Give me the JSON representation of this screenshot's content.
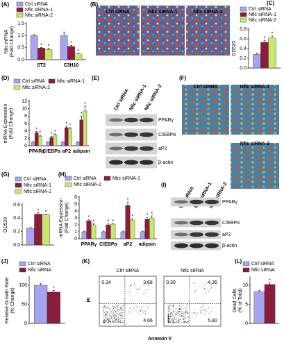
{
  "chart_data": [
    {
      "type": "bar",
      "panel": "(A)",
      "y_label": [
        "Nfic mRNA",
        "(Fold Change)"
      ],
      "categories": [
        "ST2",
        "C3H10"
      ],
      "ylim": [
        0,
        1.5
      ],
      "yticks": [
        {
          "value": 0,
          "label": "0.0"
        },
        {
          "value": 0.5,
          "label": "0.5"
        },
        {
          "value": 1,
          "label": "1.0"
        },
        {
          "value": 1.5,
          "label": "1.5"
        }
      ],
      "series": [
        {
          "name": "Ctrl siRNA",
          "color": "#a5a5f0",
          "values": [
            1,
            1
          ],
          "errors": [
            0.04,
            0.15
          ]
        },
        {
          "name": "Nfic siRNA-1",
          "color": "#8c1c3c",
          "values": [
            0.48,
            0.55
          ],
          "errors": [
            0.03,
            0.05
          ],
          "sig": [
            "*",
            "*"
          ]
        },
        {
          "name": "Nfic siRNA-2",
          "color": "#c6e86c",
          "values": [
            0.42,
            0.24
          ],
          "errors": [
            0.05,
            0.03
          ],
          "sig": [
            "*",
            "*"
          ]
        }
      ]
    },
    {
      "type": "bar",
      "panel": "(C)",
      "y_label": [
        "OD520"
      ],
      "categories": [
        null
      ],
      "ylim": [
        0,
        0.8
      ],
      "yticks": [
        {
          "value": 0,
          "label": "0.0"
        },
        {
          "value": 0.2,
          "label": "0.2"
        },
        {
          "value": 0.4,
          "label": "0.4"
        },
        {
          "value": 0.6,
          "label": "0.6"
        },
        {
          "value": 0.8,
          "label": "0.8"
        }
      ],
      "series": [
        {
          "name": "Ctrl siRNA",
          "color": "#a5a5f0",
          "values": [
            0.28
          ],
          "errors": [
            0.03
          ]
        },
        {
          "name": "Nfic siRNA-1",
          "color": "#8c1c3c",
          "values": [
            0.53
          ],
          "errors": [
            0.04
          ],
          "sig": [
            "*"
          ]
        },
        {
          "name": "Nfic siRNA-2",
          "color": "#c6e86c",
          "values": [
            0.62
          ],
          "errors": [
            0.04
          ],
          "sig": [
            "*"
          ]
        }
      ]
    },
    {
      "type": "bar",
      "panel": "(D)",
      "y_label": [
        "mRNA Expression",
        "(Fold Change)"
      ],
      "categories": [
        "PPARγ",
        "C/EBPα",
        "aP2",
        "adipsin"
      ],
      "ylim": [
        0,
        12
      ],
      "yticks": [
        0,
        2,
        4,
        6,
        8,
        10,
        12
      ],
      "series": [
        {
          "name": "Ctrl siRNA",
          "color": "#a5a5f0",
          "values": [
            1,
            1,
            1,
            1
          ],
          "errors": [
            0.1,
            0.1,
            0.1,
            0.1
          ]
        },
        {
          "name": "Nfic siRNA-1",
          "color": "#8c1c3c",
          "values": [
            3.5,
            2.2,
            4.9,
            7
          ],
          "errors": [
            0.3,
            0.3,
            0.4,
            1
          ],
          "sig": [
            "*",
            "*",
            "*",
            "*"
          ]
        },
        {
          "name": "Nfic siRNA-2",
          "color": "#c6e86c",
          "values": [
            2.6,
            2.9,
            4.6,
            9.4
          ],
          "errors": [
            0.3,
            0.3,
            0.3,
            1.3
          ],
          "sig": [
            "*",
            "*",
            "*",
            "*"
          ]
        }
      ]
    },
    {
      "type": "bar",
      "panel": "(G)",
      "y_label": [
        "OD520"
      ],
      "categories": [
        null
      ],
      "ylim": [
        0,
        0.6
      ],
      "yticks": [
        {
          "value": 0,
          "label": "0.0"
        },
        {
          "value": 0.2,
          "label": "0.2"
        },
        {
          "value": 0.4,
          "label": "0.4"
        },
        {
          "value": 0.6,
          "label": "0.6"
        }
      ],
      "series": [
        {
          "name": "Ctrl siRNA",
          "color": "#a5a5f0",
          "values": [
            0.25
          ],
          "errors": [
            0.01
          ]
        },
        {
          "name": "Nfic siRNA-1",
          "color": "#8c1c3c",
          "values": [
            0.46
          ],
          "errors": [
            0.02
          ],
          "sig": [
            "*"
          ]
        },
        {
          "name": "Nfic siRNA-2",
          "color": "#c6e86c",
          "values": [
            0.45
          ],
          "errors": [
            0.01
          ],
          "sig": [
            "*"
          ]
        }
      ]
    },
    {
      "type": "bar",
      "panel": "(H)",
      "y_label": [
        "mRNA Expression",
        "(Fold Change)"
      ],
      "categories": [
        "PPARγ",
        "C/EBPα",
        "aP2",
        "adipsin"
      ],
      "ylim": [
        0,
        6
      ],
      "yticks": [
        0,
        1,
        2,
        3,
        4,
        5,
        6
      ],
      "series": [
        {
          "name": "Ctrl siRNA",
          "color": "#a5a5f0",
          "values": [
            1,
            1,
            1,
            1
          ],
          "errors": [
            0.1,
            0.1,
            0.1,
            0.1
          ]
        },
        {
          "name": "Nfic siRNA-1",
          "color": "#8c1c3c",
          "values": [
            2.6,
            2,
            4.8,
            2.8
          ],
          "errors": [
            0.2,
            0.2,
            0.5,
            0.3
          ],
          "sig": [
            "*",
            "*",
            "*",
            "*"
          ]
        },
        {
          "name": "Nfic siRNA-2",
          "color": "#c6e86c",
          "values": [
            2,
            2.1,
            2.7,
            3
          ],
          "errors": [
            0.2,
            0.1,
            0.2,
            0.3
          ],
          "sig": [
            "*",
            "*",
            "*",
            "*"
          ]
        }
      ]
    },
    {
      "type": "bar",
      "panel": "(J)",
      "y_label": [
        "Relative Growth Rate",
        "(% Change)"
      ],
      "categories": [
        null
      ],
      "ylim": [
        0,
        120
      ],
      "yticks": [
        0,
        50,
        100
      ],
      "series": [
        {
          "name": "Ctrl siRNA",
          "color": "#a5a5f0",
          "values": [
            100
          ],
          "errors": [
            4
          ]
        },
        {
          "name": "Nfic siRNA",
          "color": "#8c1c3c",
          "values": [
            82
          ],
          "errors": [
            4
          ],
          "sig": [
            "*"
          ]
        }
      ]
    },
    {
      "type": "bar",
      "panel": "(L)",
      "y_label": [
        "Dead Cells",
        "(% of Total)"
      ],
      "categories": [
        null
      ],
      "ylim": [
        0,
        12
      ],
      "yticks": [
        0,
        5,
        10
      ],
      "series": [
        {
          "name": "Ctrl siRNA",
          "color": "#a5a5f0",
          "values": [
            8.3
          ],
          "errors": [
            0.3
          ]
        },
        {
          "name": "Nfic siRNA",
          "color": "#8c1c3c",
          "values": [
            10.2
          ],
          "errors": [
            0.4
          ],
          "sig": [
            "*"
          ]
        }
      ]
    }
  ],
  "images": [
    {
      "panel": "(B)",
      "labels": [
        "Ctrl siRNA",
        "Nfic siRNA-1",
        "Nfic siRNA-2"
      ]
    },
    {
      "panel": "(F)",
      "labels": [
        "Ctrl siRNA",
        "Nfic siRNA-1",
        "Nfic siRNA-2"
      ]
    }
  ],
  "blots": [
    {
      "panel": "(E)",
      "lanes": [
        "Ctrl siRNA",
        "Nfic siRNA-1",
        "Nfic siRNA-2"
      ],
      "bands": [
        "PPARγ",
        "C/EBPα",
        "aP2",
        "β-actin"
      ]
    },
    {
      "panel": "(I)",
      "lanes": [
        "Ctrl siRNA",
        "Nfic siRNA-1",
        "Nfic siRNA-2"
      ],
      "bands": [
        "PPARγ",
        "C/EBPα",
        "aP2",
        "β-actin"
      ]
    }
  ],
  "flow": {
    "panel": "(K)",
    "y_label": "PI",
    "x_label": "Annexin V",
    "plots": [
      {
        "title": "Ctrl siRNA",
        "quadrants": [
          {
            "value": 0.34,
            "label": "0.34"
          },
          3.68,
          4.66
        ]
      },
      {
        "title": "Nfic siRNA",
        "quadrants": [
          {
            "value": 0.3,
            "label": "0.30"
          },
          4.36,
          {
            "value": 5.8,
            "label": "5.80"
          }
        ]
      }
    ]
  }
}
